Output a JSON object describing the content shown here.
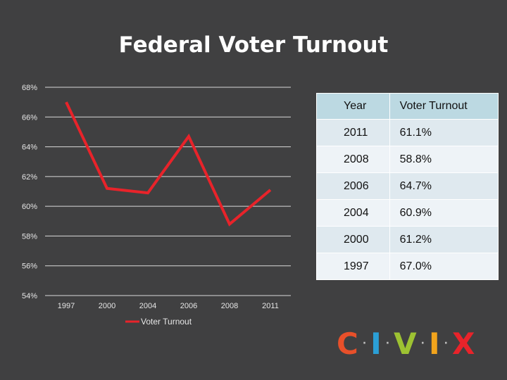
{
  "title": "Federal Voter Turnout",
  "chart_data": {
    "type": "line",
    "categories": [
      "1997",
      "2000",
      "2004",
      "2006",
      "2008",
      "2011"
    ],
    "series": [
      {
        "name": "Voter Turnout",
        "values": [
          67.0,
          61.2,
          60.9,
          64.7,
          58.8,
          61.1
        ],
        "color": "#e8232a"
      }
    ],
    "ylim": [
      54,
      68
    ],
    "yticks": [
      54,
      56,
      58,
      60,
      62,
      64,
      66,
      68
    ],
    "ytick_suffix": "%",
    "grid": true,
    "legend": "bottom"
  },
  "table": {
    "headers": [
      "Year",
      "Voter Turnout"
    ],
    "rows": [
      [
        "2011",
        "61.1%"
      ],
      [
        "2008",
        "58.8%"
      ],
      [
        "2006",
        "64.7%"
      ],
      [
        "2004",
        "60.9%"
      ],
      [
        "2000",
        "61.2%"
      ],
      [
        "1997",
        "67.0%"
      ]
    ]
  },
  "logo": {
    "letters": [
      "C",
      "I",
      "V",
      "I",
      "X"
    ],
    "colors": [
      "#e8502a",
      "#2b9fd6",
      "#9dc232",
      "#f2a41c",
      "#e8232a"
    ],
    "separator": "·"
  }
}
